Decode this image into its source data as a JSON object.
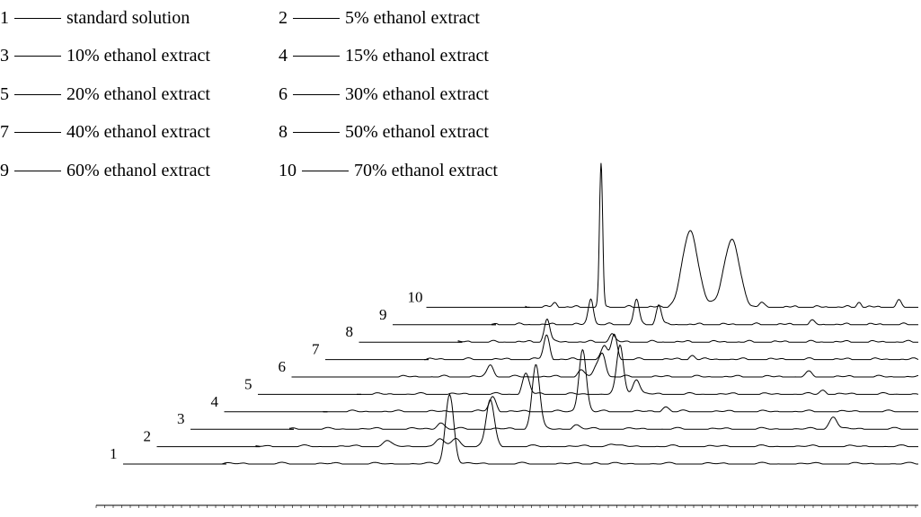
{
  "legend": [
    {
      "num": "1",
      "label": "standard solution"
    },
    {
      "num": "2",
      "label": "5% ethanol extract"
    },
    {
      "num": "3",
      "label": "10% ethanol extract"
    },
    {
      "num": "4",
      "label": "15% ethanol extract"
    },
    {
      "num": "5",
      "label": "20% ethanol extract"
    },
    {
      "num": "6",
      "label": "30% ethanol extract"
    },
    {
      "num": "7",
      "label": "40% ethanol extract"
    },
    {
      "num": "8",
      "label": "50% ethanol extract"
    },
    {
      "num": "9",
      "label": "60% ethanol extract"
    },
    {
      "num": "10",
      "label": "70% ethanol extract"
    }
  ],
  "chart_data": {
    "type": "line",
    "title": "",
    "xlabel": "",
    "ylabel": "",
    "grid": false,
    "stacked_offset": true,
    "x_axis_ticks_legible": false,
    "series": [
      {
        "name": "1",
        "peaks": [
          {
            "x": 0.327,
            "h": 78
          },
          {
            "x": 0.536,
            "h": 2
          }
        ]
      },
      {
        "name": "2",
        "peaks": [
          {
            "x": 0.197,
            "h": 7
          },
          {
            "x": 0.277,
            "h": 8
          },
          {
            "x": 0.302,
            "h": 10
          },
          {
            "x": 0.354,
            "h": 52
          },
          {
            "x": 0.536,
            "h": 4
          }
        ]
      },
      {
        "name": "3",
        "peaks": [
          {
            "x": 0.24,
            "h": 8
          },
          {
            "x": 0.392,
            "h": 73
          },
          {
            "x": 0.455,
            "h": 5
          },
          {
            "x": 0.865,
            "h": 15
          }
        ]
      },
      {
        "name": "4",
        "peaks": [
          {
            "x": 0.285,
            "h": 17
          },
          {
            "x": 0.436,
            "h": 71
          },
          {
            "x": 0.575,
            "h": 6
          }
        ]
      },
      {
        "name": "5",
        "peaks": [
          {
            "x": 0.301,
            "h": 23
          },
          {
            "x": 0.469,
            "h": 55
          },
          {
            "x": 0.498,
            "h": 18
          },
          {
            "x": 0.83,
            "h": 5
          }
        ]
      },
      {
        "name": "6",
        "peaks": [
          {
            "x": 0.19,
            "h": 14
          },
          {
            "x": 0.36,
            "h": 8
          },
          {
            "x": 0.39,
            "h": 10
          },
          {
            "x": 0.402,
            "h": 26
          },
          {
            "x": 0.793,
            "h": 5
          }
        ]
      },
      {
        "name": "7",
        "peaks": [
          {
            "x": 0.248,
            "h": 27
          },
          {
            "x": 0.365,
            "h": 15
          },
          {
            "x": 0.385,
            "h": 28
          },
          {
            "x": 0.543,
            "h": 5
          }
        ]
      },
      {
        "name": "8",
        "peaks": [
          {
            "x": 0.194,
            "h": 27
          },
          {
            "x": 0.334,
            "h": 10
          }
        ]
      },
      {
        "name": "9",
        "peaks": [
          {
            "x": 0.233,
            "h": 30
          },
          {
            "x": 0.34,
            "h": 28
          },
          {
            "x": 0.392,
            "h": 23
          },
          {
            "x": 0.75,
            "h": 4
          }
        ]
      },
      {
        "name": "10",
        "peaks": [
          {
            "x": 0.075,
            "h": 5
          },
          {
            "x": 0.193,
            "h": 160
          },
          {
            "x": 0.42,
            "h": 85
          },
          {
            "x": 0.525,
            "h": 75
          },
          {
            "x": 0.6,
            "h": 5
          },
          {
            "x": 0.85,
            "h": 6
          },
          {
            "x": 0.95,
            "h": 7
          }
        ]
      }
    ]
  }
}
